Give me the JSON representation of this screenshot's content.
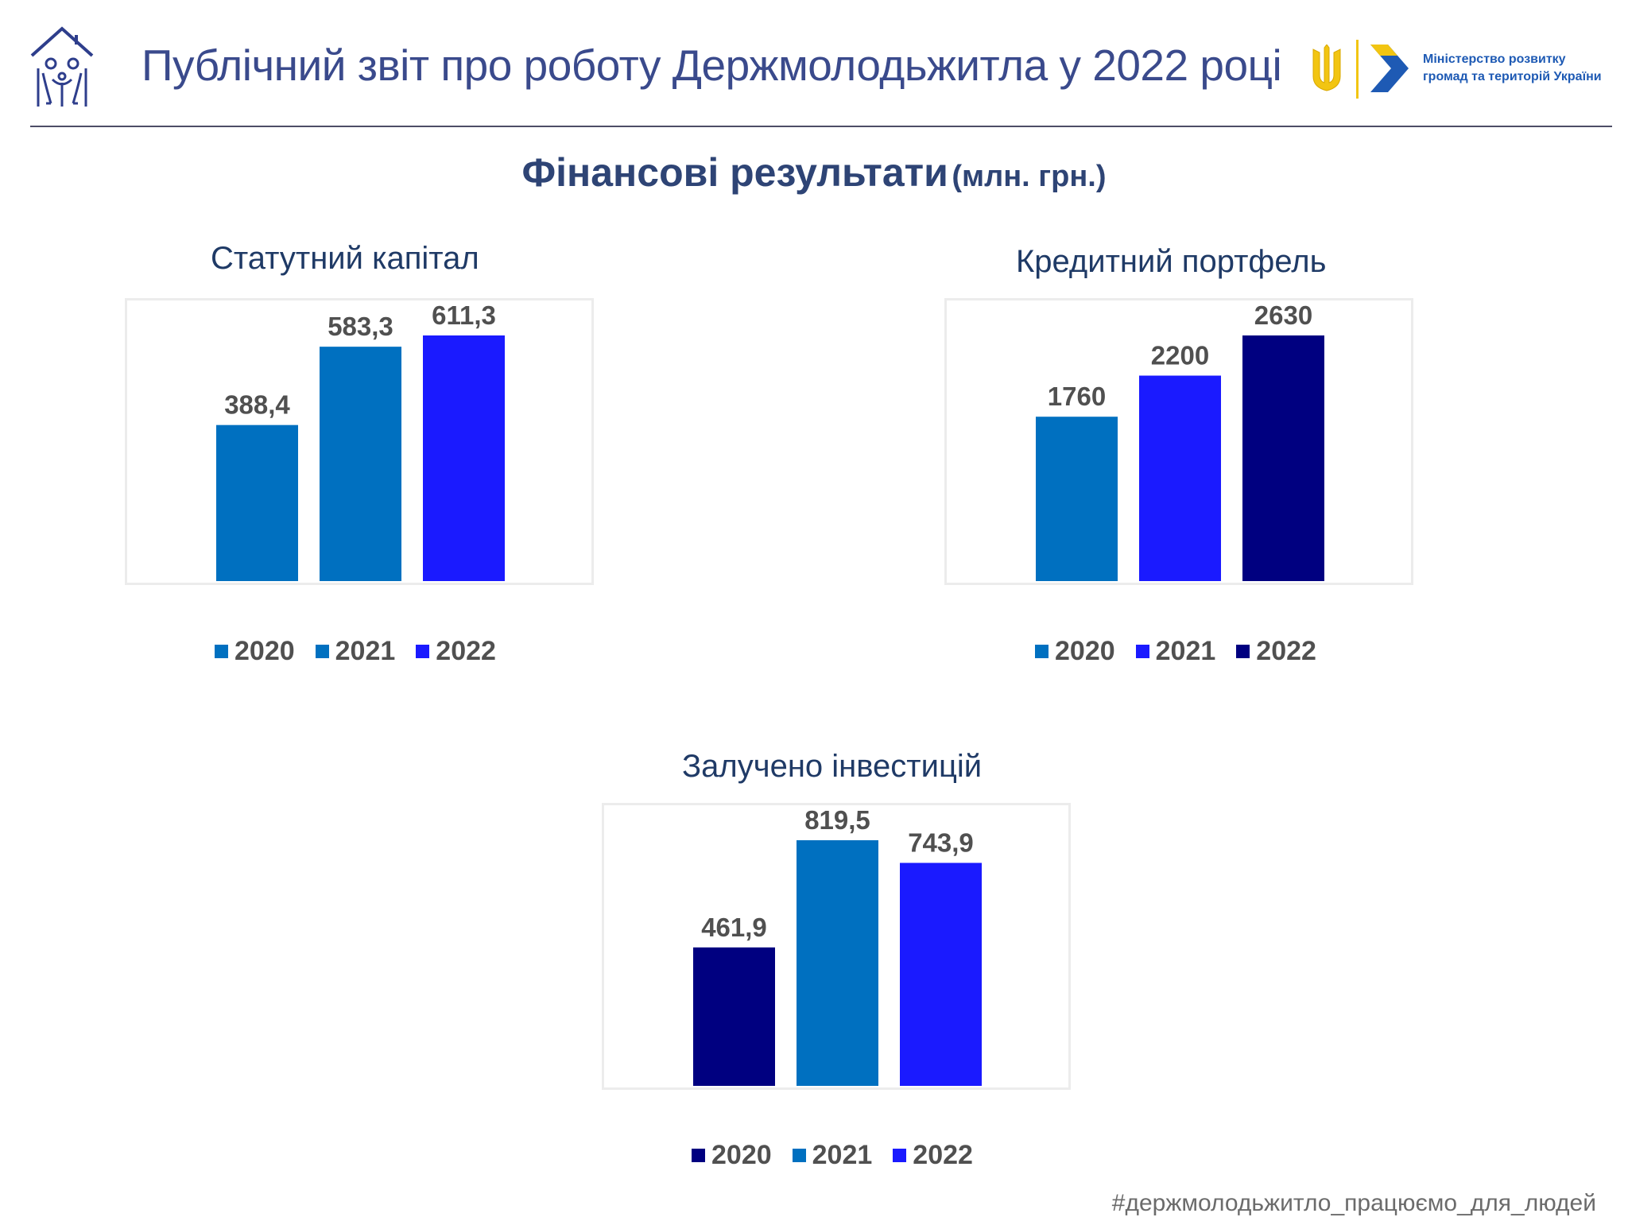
{
  "header": {
    "title": "Публічний звіт про роботу Держмолодьжитла  у 2022 році",
    "ministry_line1": "Міністерство розвитку",
    "ministry_line2": "громад та територій України",
    "logo_icon": "house-family-logo-icon",
    "emblem_icon": "trident-emblem-icon",
    "ministry_icon": "chevron-arrow-logo-icon"
  },
  "section": {
    "title": "Фінансові  результати",
    "unit": "(млн. грн.)"
  },
  "footer": {
    "hashtag": "#держмолодьжитло_працюємо_для_людей"
  },
  "colors": {
    "medium_blue": "#0070c0",
    "bright_blue": "#1a1aff",
    "navy": "#000080",
    "title": "#3a4a8c"
  },
  "chart_data": [
    {
      "type": "bar",
      "title": "Статутний капітал",
      "categories": [
        "2020",
        "2021",
        "2022"
      ],
      "values": [
        388.4,
        583.3,
        611.3
      ],
      "value_labels": [
        "388,4",
        "583,3",
        "611,3"
      ],
      "colors": [
        "#0070c0",
        "#0070c0",
        "#1a1aff"
      ],
      "legend": "bottom",
      "grid": false
    },
    {
      "type": "bar",
      "title": "Кредитний портфель",
      "categories": [
        "2020",
        "2021",
        "2022"
      ],
      "values": [
        1760,
        2200,
        2630
      ],
      "value_labels": [
        "1760",
        "2200",
        "2630"
      ],
      "colors": [
        "#0070c0",
        "#1a1aff",
        "#000080"
      ],
      "legend": "bottom",
      "grid": false
    },
    {
      "type": "bar",
      "title": "Залучено інвестицій",
      "categories": [
        "2020",
        "2021",
        "2022"
      ],
      "values": [
        461.9,
        819.5,
        743.9
      ],
      "value_labels": [
        "461,9",
        "819,5",
        "743,9"
      ],
      "colors": [
        "#000080",
        "#0070c0",
        "#1a1aff"
      ],
      "legend": "bottom",
      "grid": false
    }
  ]
}
